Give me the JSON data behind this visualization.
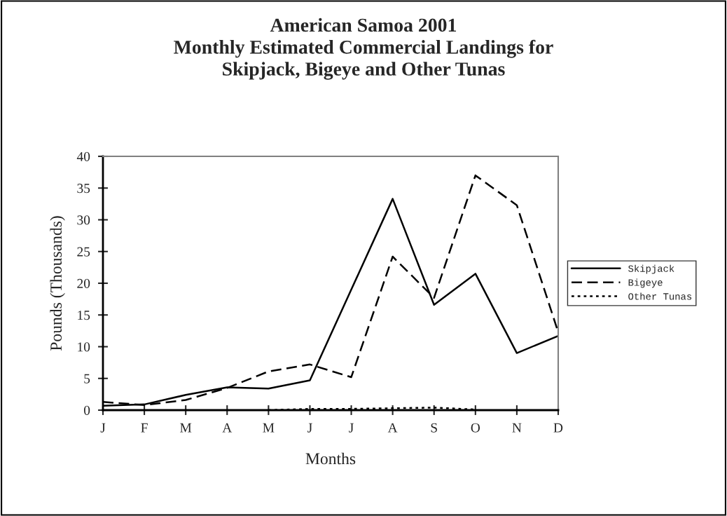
{
  "chart_data": {
    "type": "line",
    "title": "American Samoa 2001\nMonthly Estimated Commercial Landings for\nSkipjack, Bigeye and Other Tunas",
    "xlabel": "Months",
    "ylabel": "Pounds (Thousands)",
    "categories": [
      "J",
      "F",
      "M",
      "A",
      "M",
      "J",
      "J",
      "A",
      "S",
      "O",
      "N",
      "D"
    ],
    "series": [
      {
        "name": "Skipjack",
        "color": "#000000",
        "line_style": "solid",
        "values": [
          0.7,
          0.9,
          2.4,
          3.6,
          3.4,
          4.7,
          19,
          33.3,
          16.6,
          21.5,
          9,
          11.7
        ]
      },
      {
        "name": "Bigeye",
        "color": "#000000",
        "line_style": "dashed",
        "values": [
          1.3,
          0.8,
          1.6,
          3.5,
          6.1,
          7.2,
          5.2,
          24.2,
          17.7,
          37,
          32.3,
          12.3
        ]
      },
      {
        "name": "Other Tunas",
        "color": "#000000",
        "line_style": "dotted",
        "values": [
          null,
          null,
          null,
          null,
          0,
          0.2,
          0.2,
          0.3,
          0.4,
          0.1,
          null,
          null
        ]
      }
    ],
    "ylim": [
      0,
      40
    ],
    "yticks": [
      0,
      5,
      10,
      15,
      20,
      25,
      30,
      35,
      40
    ],
    "grid": false,
    "legend": "right",
    "marker": "none"
  }
}
